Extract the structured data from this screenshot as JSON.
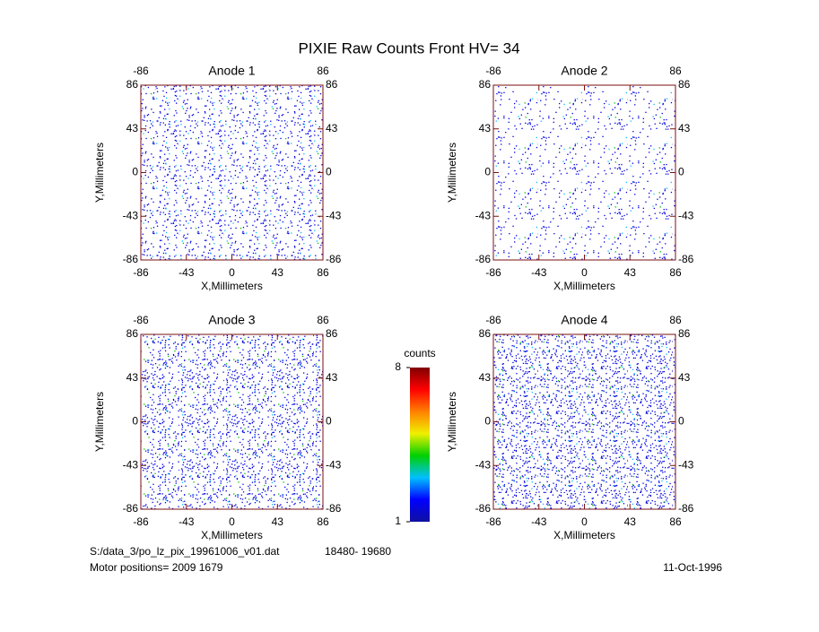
{
  "title": "PIXIE Raw Counts Front HV= 34",
  "chart_data": [
    {
      "type": "heatmap",
      "title": "Anode 1",
      "xlabel": "X,Millimeters",
      "ylabel": "Y,Millimeters",
      "xlim": [
        -86,
        86
      ],
      "ylim": [
        -86,
        86
      ],
      "xticks": [
        -86,
        -43,
        0,
        43,
        86
      ],
      "yticks": [
        -86,
        -43,
        0,
        43,
        86
      ],
      "x2ticks": [
        -86,
        86
      ],
      "y2ticks": [
        -86,
        -43,
        0,
        43,
        86
      ]
    },
    {
      "type": "heatmap",
      "title": "Anode 2",
      "xlabel": "X,Millimeters",
      "ylabel": "Y,Millimeters",
      "xlim": [
        -86,
        86
      ],
      "ylim": [
        -86,
        86
      ],
      "xticks": [
        -86,
        -43,
        0,
        43,
        86
      ],
      "yticks": [
        -86,
        -43,
        0,
        43,
        86
      ],
      "x2ticks": [
        -86,
        86
      ],
      "y2ticks": [
        -86,
        -43,
        0,
        43,
        86
      ]
    },
    {
      "type": "heatmap",
      "title": "Anode 3",
      "xlabel": "X,Millimeters",
      "ylabel": "Y,Millimeters",
      "xlim": [
        -86,
        86
      ],
      "ylim": [
        -86,
        86
      ],
      "xticks": [
        -86,
        -43,
        0,
        43,
        86
      ],
      "yticks": [
        -86,
        -43,
        0,
        43,
        86
      ],
      "x2ticks": [
        -86,
        86
      ],
      "y2ticks": [
        -86,
        -43,
        0,
        43,
        86
      ]
    },
    {
      "type": "heatmap",
      "title": "Anode 4",
      "xlabel": "X,Millimeters",
      "ylabel": "Y,Millimeters",
      "xlim": [
        -86,
        86
      ],
      "ylim": [
        -86,
        86
      ],
      "xticks": [
        -86,
        -43,
        0,
        43,
        86
      ],
      "yticks": [
        -86,
        -43,
        0,
        43,
        86
      ],
      "x2ticks": [
        -86,
        86
      ],
      "y2ticks": [
        -86,
        -43,
        0,
        43,
        86
      ]
    }
  ],
  "colorbar": {
    "label": "counts",
    "lim": [
      1,
      8
    ],
    "ticks": [
      1,
      8
    ],
    "colors": [
      "#1010a0",
      "#0000ff",
      "#00c0ff",
      "#00d000",
      "#f0f000",
      "#ff8000",
      "#ff0000",
      "#800000"
    ]
  },
  "footer": {
    "file": "S:/data_3/po_lz_pix_19961006_v01.dat",
    "range": "18480- 19680",
    "motor": "Motor positions= 2009 1679",
    "date": "11-Oct-1996"
  }
}
